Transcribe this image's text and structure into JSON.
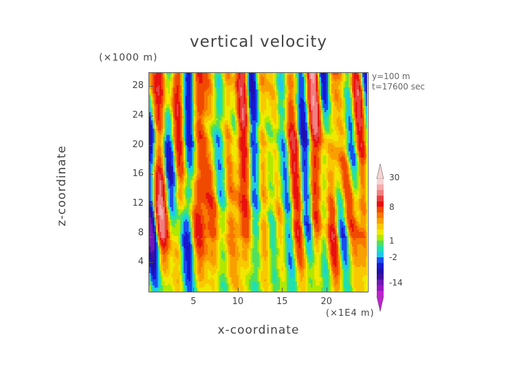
{
  "chart_data": {
    "type": "heatmap",
    "title": "vertical velocity",
    "xlabel": "x-coordinate",
    "ylabel": "z-coordinate",
    "x_unit": "(×1E4 m)",
    "y_unit": "(×1000 m)",
    "annotations": [
      "y=100 m",
      "t=17600 sec"
    ],
    "xlim": [
      0,
      24.6
    ],
    "ylim": [
      0,
      29.8
    ],
    "x_ticks": [
      5,
      10,
      15,
      20
    ],
    "y_ticks": [
      4,
      8,
      12,
      16,
      20,
      24,
      28
    ],
    "colorbar": {
      "labels": [
        30,
        8,
        1,
        -2,
        -14
      ],
      "levels": [
        {
          "lo": 20,
          "hi": 30,
          "color": "#f7d4d4"
        },
        {
          "lo": 15,
          "hi": 20,
          "color": "#f4aaaa"
        },
        {
          "lo": 12,
          "hi": 15,
          "color": "#f08080"
        },
        {
          "lo": 10,
          "hi": 12,
          "color": "#e84040"
        },
        {
          "lo": 8,
          "hi": 10,
          "color": "#e81010"
        },
        {
          "lo": 6,
          "hi": 8,
          "color": "#f04a00"
        },
        {
          "lo": 5,
          "hi": 6,
          "color": "#f87800"
        },
        {
          "lo": 4,
          "hi": 5,
          "color": "#f8a000"
        },
        {
          "lo": 3,
          "hi": 4,
          "color": "#f8c800"
        },
        {
          "lo": 2,
          "hi": 3,
          "color": "#f0e800"
        },
        {
          "lo": 1,
          "hi": 2,
          "color": "#b0e800"
        },
        {
          "lo": 0,
          "hi": 1,
          "color": "#50e060"
        },
        {
          "lo": -1,
          "hi": 0,
          "color": "#20e0b0"
        },
        {
          "lo": -2,
          "hi": -1,
          "color": "#20c8e8"
        },
        {
          "lo": -4,
          "hi": -2,
          "color": "#1850f0"
        },
        {
          "lo": -6,
          "hi": -4,
          "color": "#1818d0"
        },
        {
          "lo": -8,
          "hi": -6,
          "color": "#2010a8"
        },
        {
          "lo": -10,
          "hi": -8,
          "color": "#4010a0"
        },
        {
          "lo": -14,
          "hi": -10,
          "color": "#7018b8"
        },
        {
          "lo": -20,
          "hi": -14,
          "color": "#9818c0"
        },
        {
          "lo": -30,
          "hi": -20,
          "color": "#c020d0"
        }
      ]
    },
    "field_description": "turbulent vertical-velocity field dominated by orange/yellow (positive) values with vertically elongated blue (negative) plumes; more green/cyan near the surface"
  }
}
